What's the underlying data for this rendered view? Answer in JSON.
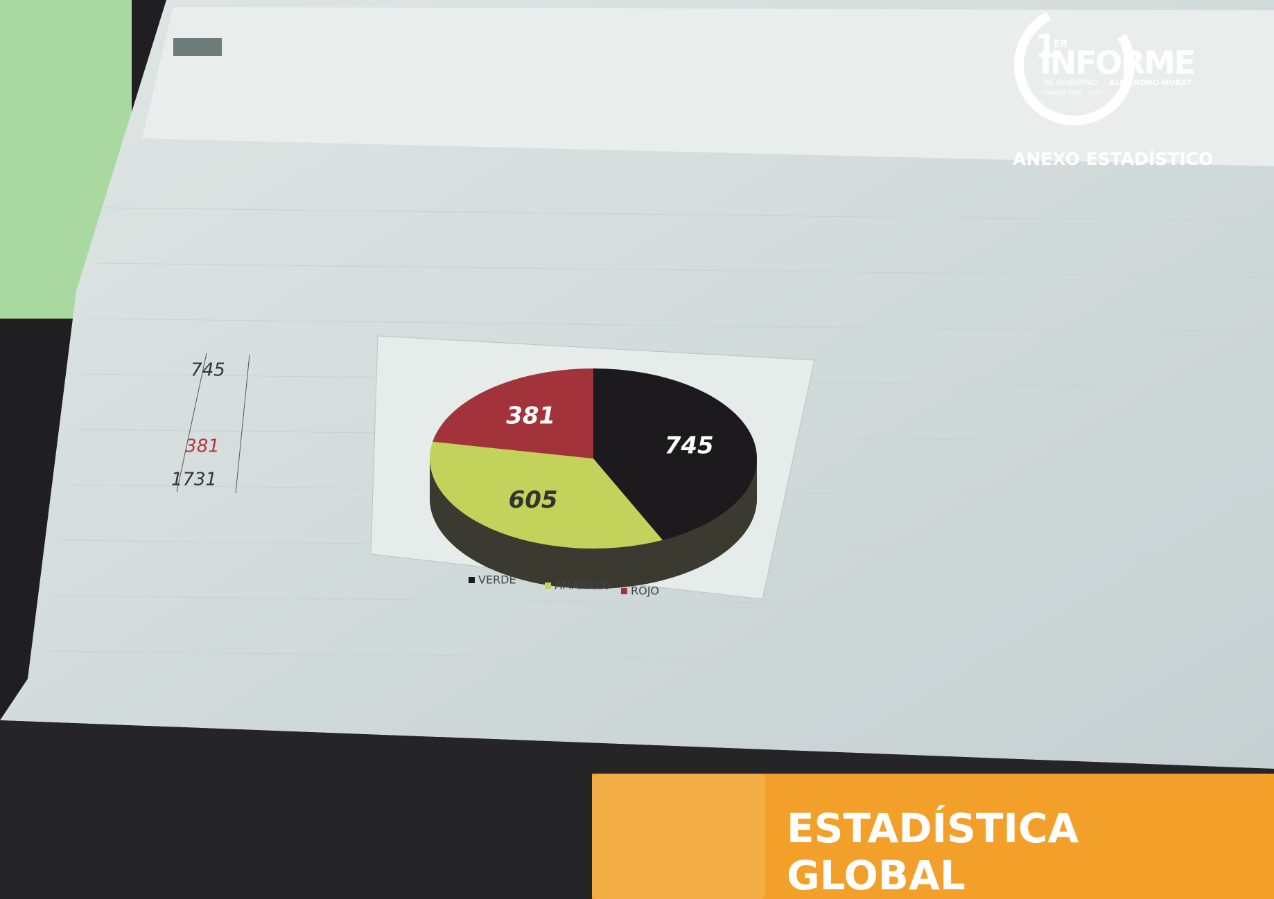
{
  "logo": {
    "number": "1",
    "superscript": "ER",
    "title": "INFORME",
    "line1": "DE GOBIERNO",
    "line2": "ALEJANDRO MURAT",
    "line3": "OAXACA 2016 - 2017"
  },
  "subtitle": "ANEXO ESTADÍSTICO",
  "banner": {
    "title_line1": "ESTADÍSTICA",
    "title_line2": "GLOBAL"
  },
  "screen": {
    "table_values": [
      745,
      381,
      1731
    ],
    "chart": {
      "type": "pie",
      "categories": [
        "VERDE",
        "AMARILLO",
        "ROJO"
      ],
      "values": [
        745,
        605,
        381
      ],
      "colors": [
        "#1c1a1c",
        "#c3d25a",
        "#a3333a"
      ]
    }
  }
}
